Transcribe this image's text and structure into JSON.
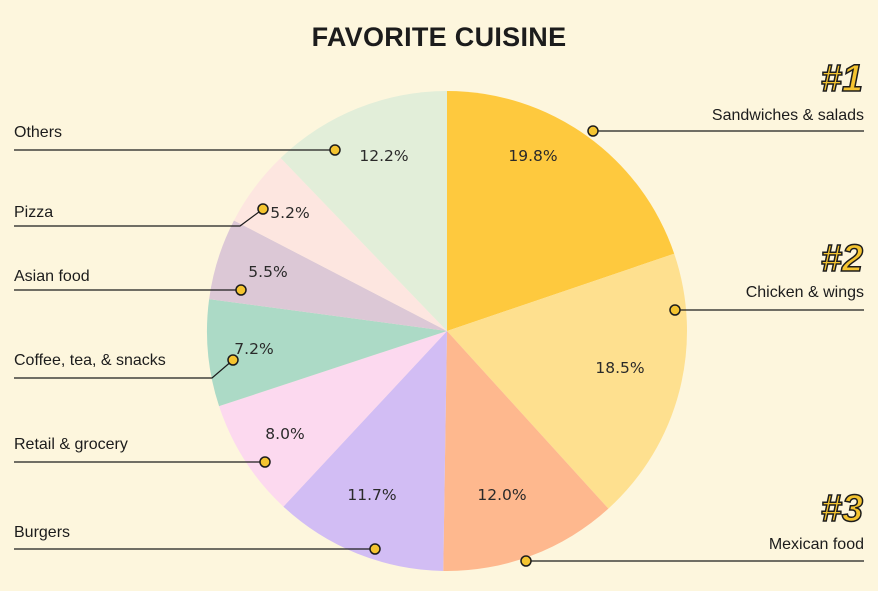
{
  "chart_data": {
    "type": "pie",
    "title": "FAVORITE CUISINE",
    "slices": [
      {
        "label": "Sandwiches & salads",
        "value": 19.8,
        "value_label": "19.8%",
        "color": "#fec93e",
        "rank": "#1"
      },
      {
        "label": "Chicken & wings",
        "value": 18.5,
        "value_label": "18.5%",
        "color": "#fee08f",
        "rank": "#2"
      },
      {
        "label": "Mexican food",
        "value": 12.0,
        "value_label": "12.0%",
        "color": "#feb88e",
        "rank": "#3"
      },
      {
        "label": "Burgers",
        "value": 11.7,
        "value_label": "11.7%",
        "color": "#d2bdf4"
      },
      {
        "label": "Retail & grocery",
        "value": 8.0,
        "value_label": "8.0%",
        "color": "#fcd9ef"
      },
      {
        "label": "Coffee, tea, & snacks",
        "value": 7.2,
        "value_label": "7.2%",
        "color": "#acdac6"
      },
      {
        "label": "Asian food",
        "value": 5.5,
        "value_label": "5.5%",
        "color": "#dcc8d6"
      },
      {
        "label": "Pizza",
        "value": 5.2,
        "value_label": "5.2%",
        "color": "#fde6e0"
      },
      {
        "label": "Others",
        "value": 12.2,
        "value_label": "12.2%",
        "color": "#e2eed9"
      }
    ]
  }
}
